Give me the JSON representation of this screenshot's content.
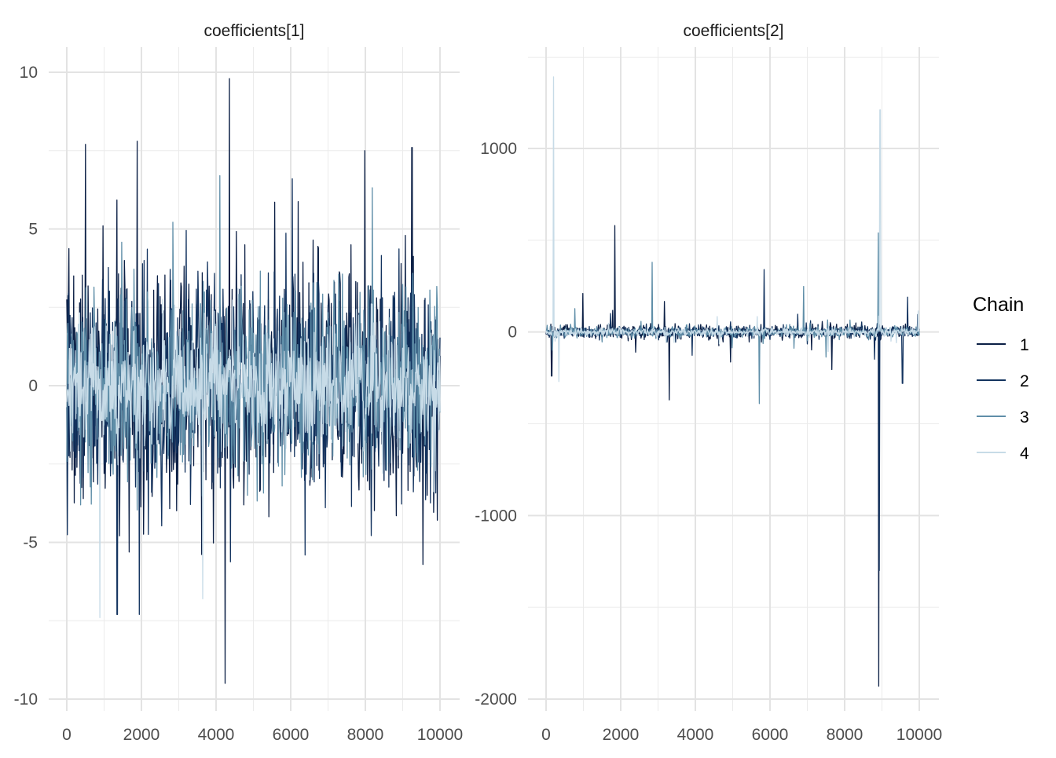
{
  "chart_data": [
    {
      "type": "line",
      "title": "coefficients[1]",
      "xlabel": "",
      "ylabel": "",
      "xlim": [
        0,
        10000
      ],
      "ylim": [
        -10,
        10
      ],
      "xticks": [
        0,
        2000,
        4000,
        6000,
        8000,
        10000
      ],
      "yticks": [
        -10,
        -5,
        0,
        5,
        10
      ],
      "grid": true,
      "n_iter": 10000,
      "chain_sd": [
        1.9,
        1.8,
        1.6,
        1.0
      ],
      "spikes": [
        {
          "chain": 1,
          "x": 4360,
          "y": 9.8
        },
        {
          "chain": 1,
          "x": 4250,
          "y": -9.5
        },
        {
          "chain": 1,
          "x": 500,
          "y": 7.7
        },
        {
          "chain": 1,
          "x": 1880,
          "y": 7.8
        },
        {
          "chain": 1,
          "x": 7980,
          "y": 7.5
        },
        {
          "chain": 1,
          "x": 9250,
          "y": 7.6
        },
        {
          "chain": 2,
          "x": 6050,
          "y": 6.6
        },
        {
          "chain": 2,
          "x": 1950,
          "y": -7.3
        },
        {
          "chain": 2,
          "x": 1350,
          "y": -7.3
        },
        {
          "chain": 3,
          "x": 4100,
          "y": 6.7
        },
        {
          "chain": 4,
          "x": 880,
          "y": -7.4
        },
        {
          "chain": 4,
          "x": 3650,
          "y": -6.8
        }
      ]
    },
    {
      "type": "line",
      "title": "coefficients[2]",
      "xlabel": "",
      "ylabel": "",
      "xlim": [
        0,
        10000
      ],
      "ylim": [
        -2000,
        1500
      ],
      "xticks": [
        0,
        2000,
        4000,
        6000,
        8000,
        10000
      ],
      "yticks": [
        -2000,
        -1000,
        0,
        1000
      ],
      "grid": true,
      "n_iter": 10000,
      "chain_sd": [
        18,
        16,
        14,
        10
      ],
      "spikes": [
        {
          "chain": 4,
          "x": 200,
          "y": 1390
        },
        {
          "chain": 4,
          "x": 8950,
          "y": 1210
        },
        {
          "chain": 1,
          "x": 8920,
          "y": -1930
        },
        {
          "chain": 2,
          "x": 8930,
          "y": -1300
        },
        {
          "chain": 1,
          "x": 1850,
          "y": 580
        },
        {
          "chain": 3,
          "x": 2850,
          "y": 380
        },
        {
          "chain": 1,
          "x": 3300,
          "y": -370
        },
        {
          "chain": 3,
          "x": 5720,
          "y": -390
        },
        {
          "chain": 2,
          "x": 5850,
          "y": 340
        },
        {
          "chain": 1,
          "x": 150,
          "y": -240
        },
        {
          "chain": 4,
          "x": 350,
          "y": -270
        },
        {
          "chain": 1,
          "x": 980,
          "y": 210
        },
        {
          "chain": 2,
          "x": 9550,
          "y": -280
        },
        {
          "chain": 3,
          "x": 8900,
          "y": 540
        }
      ]
    }
  ],
  "legend": {
    "title": "Chain",
    "placement": "right",
    "items": [
      {
        "label": "1",
        "color": "#0b1f45"
      },
      {
        "label": "2",
        "color": "#13335f"
      },
      {
        "label": "3",
        "color": "#5f8ea8"
      },
      {
        "label": "4",
        "color": "#c7dbe7"
      }
    ]
  }
}
